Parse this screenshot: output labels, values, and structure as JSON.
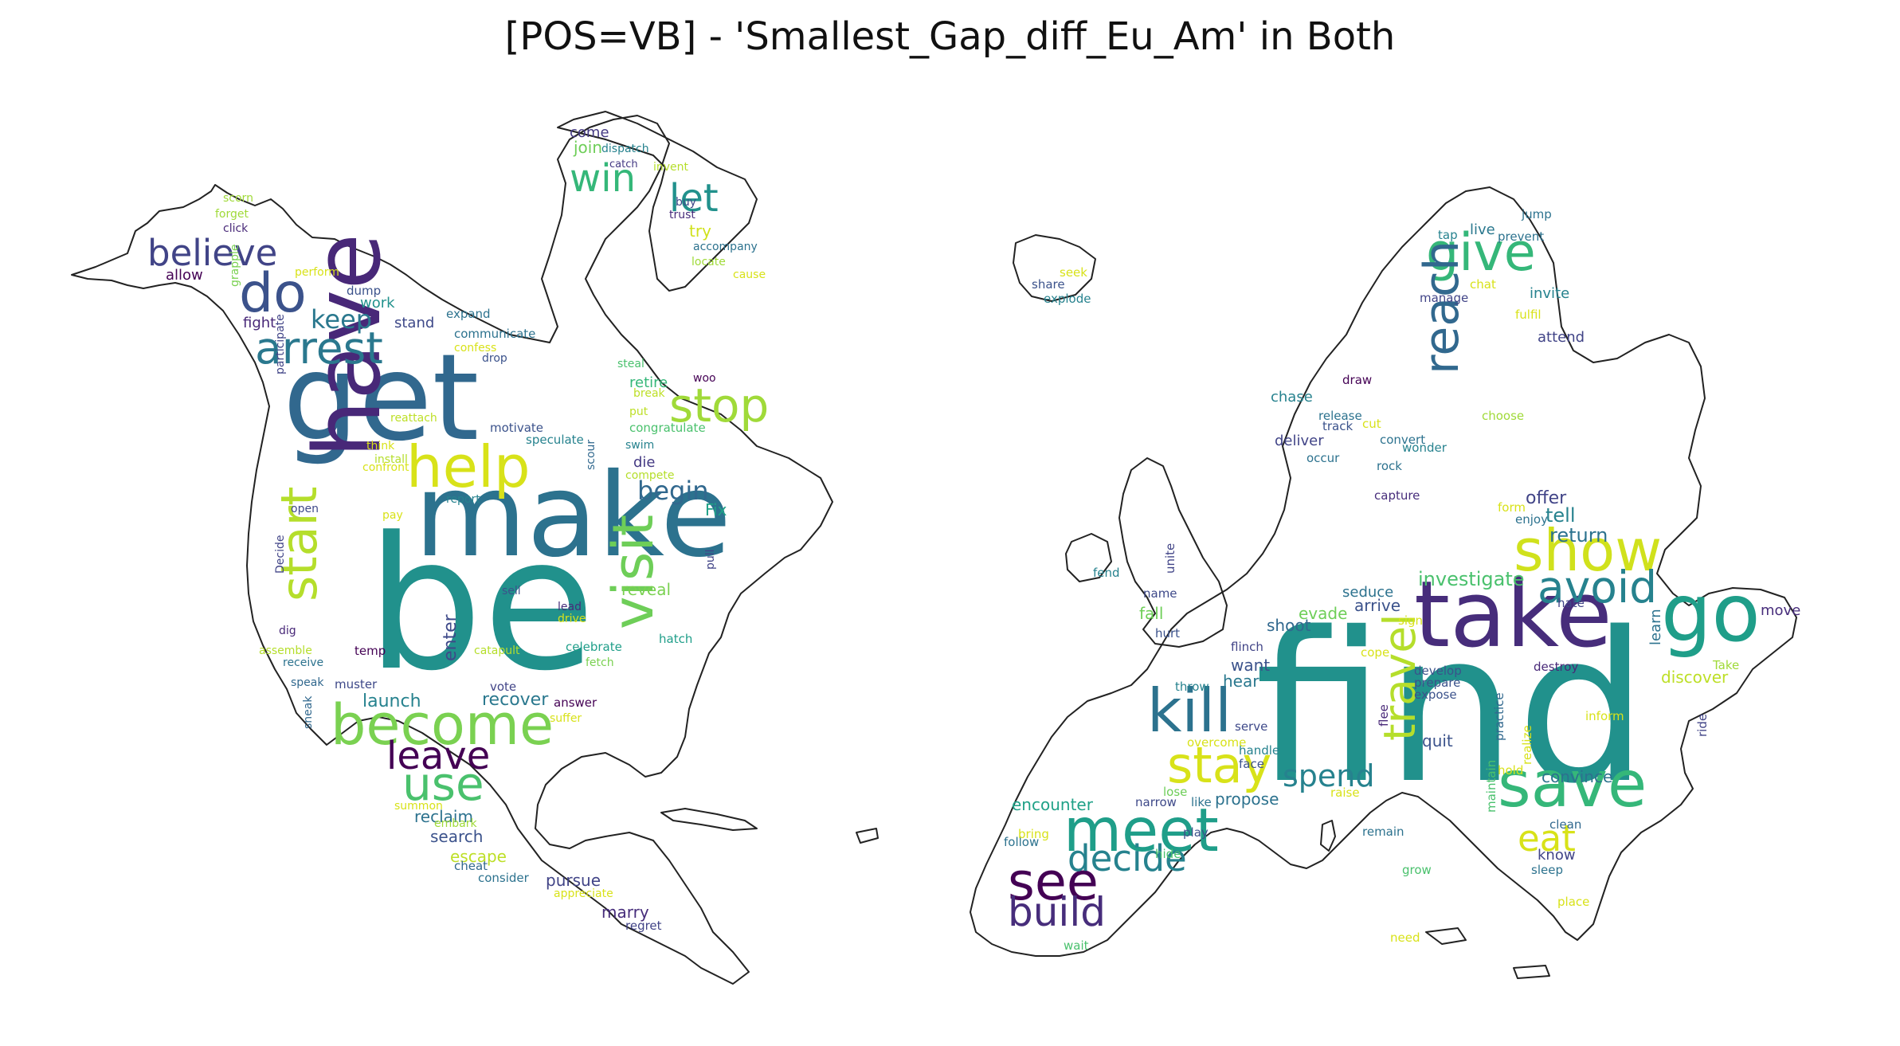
{
  "title": "[POS=VB] - 'Smallest_Gap_diff_Eu_Am' in Both",
  "maps": [
    {
      "region": "North America",
      "words": [
        [
          "be",
          1,
          "#21918c"
        ],
        [
          "make",
          0.63,
          "#2c728e"
        ],
        [
          "get",
          0.58,
          "#31688e"
        ],
        [
          "have",
          0.5,
          "#482878"
        ],
        [
          "help",
          0.34,
          "#d8e219"
        ],
        [
          "become",
          0.3,
          "#7ad151"
        ],
        [
          "do",
          0.3,
          "#3b528b"
        ],
        [
          "arrest",
          0.28,
          "#2a788e"
        ],
        [
          "visit",
          0.28,
          "#6ece58"
        ],
        [
          "start",
          0.26,
          "#b5de2b"
        ],
        [
          "stop",
          0.27,
          "#a0da39"
        ],
        [
          "use",
          0.27,
          "#4ac16d"
        ],
        [
          "leave",
          0.22,
          "#440154"
        ],
        [
          "believe",
          0.2,
          "#414487"
        ],
        [
          "win",
          0.2,
          "#35b779"
        ],
        [
          "let",
          0.2,
          "#21918c"
        ],
        [
          "keep",
          0.15,
          "#2a788e"
        ],
        [
          "begin",
          0.15,
          "#31688e"
        ],
        [
          "recover",
          0.1,
          "#2a788e"
        ],
        [
          "launch",
          0.1,
          "#26828e"
        ],
        [
          "enter",
          0.1,
          "#3e4989"
        ],
        [
          "pursue",
          0.1,
          "#414487"
        ],
        [
          "marry",
          0.1,
          "#472d7b"
        ],
        [
          "escape",
          0.1,
          "#bddf26"
        ],
        [
          "Fix",
          0.1,
          "#1fa187"
        ],
        [
          "reclaim",
          0.09,
          "#2c728e"
        ],
        [
          "search",
          0.09,
          "#3b528b"
        ],
        [
          "reveal",
          0.09,
          "#7ad151"
        ],
        [
          "try",
          0.09,
          "#d0e11c"
        ],
        [
          "join",
          0.09,
          "#6ece58"
        ],
        [
          "fight",
          0.08,
          "#482878"
        ],
        [
          "stand",
          0.08,
          "#3e4989"
        ],
        [
          "work",
          0.08,
          "#21918c"
        ],
        [
          "retire",
          0.08,
          "#35b779"
        ],
        [
          "allow",
          0.07,
          "#440154"
        ],
        [
          "die",
          0.07,
          "#443983"
        ],
        [
          "come",
          0.07,
          "#443983"
        ],
        [
          "communicate",
          0.06,
          "#2c728e"
        ],
        [
          "motivate",
          0.06,
          "#3b528b"
        ],
        [
          "speculate",
          0.06,
          "#26828e"
        ],
        [
          "congratulate",
          0.06,
          "#4ac16d"
        ],
        [
          "celebrate",
          0.06,
          "#1f9e89"
        ],
        [
          "hatch",
          0.06,
          "#1f9e89"
        ],
        [
          "dump",
          0.06,
          "#3b528b"
        ],
        [
          "expand",
          0.06,
          "#2c728e"
        ],
        [
          "temp",
          0.06,
          "#440154"
        ],
        [
          "muster",
          0.06,
          "#3e4989"
        ],
        [
          "vote",
          0.06,
          "#414487"
        ],
        [
          "answer",
          0.06,
          "#440154"
        ],
        [
          "cheat",
          0.06,
          "#31688e"
        ],
        [
          "consider",
          0.06,
          "#2c728e"
        ],
        [
          "regret",
          0.06,
          "#414487"
        ],
        [
          "appreciate",
          0.06,
          "#d8e219"
        ],
        [
          "dispatch",
          0.06,
          "#26828e"
        ],
        [
          "catch",
          0.06,
          "#443983"
        ],
        [
          "invent",
          0.06,
          "#b5de2b"
        ],
        [
          "buy",
          0.06,
          "#3e4989"
        ],
        [
          "trust",
          0.06,
          "#472d7b"
        ],
        [
          "accompany",
          0.06,
          "#2c728e"
        ],
        [
          "locate",
          0.06,
          "#a0da39"
        ],
        [
          "cause",
          0.06,
          "#d8e219"
        ],
        [
          "scorn",
          0.06,
          "#a0da39"
        ],
        [
          "forget",
          0.06,
          "#a0da39"
        ],
        [
          "click",
          0.06,
          "#482878"
        ],
        [
          "perform",
          0.06,
          "#d8e219"
        ],
        [
          "grapple",
          0.06,
          "#7ad151"
        ],
        [
          "confess",
          0.06,
          "#d8e219"
        ],
        [
          "drop",
          0.06,
          "#3b528b"
        ],
        [
          "steal",
          0.06,
          "#4ac16d"
        ],
        [
          "break",
          0.06,
          "#bddf26"
        ],
        [
          "woo",
          0.06,
          "#440154"
        ],
        [
          "put",
          0.06,
          "#bddf26"
        ],
        [
          "swim",
          0.06,
          "#26828e"
        ],
        [
          "compete",
          0.06,
          "#b5de2b"
        ],
        [
          "scour",
          0.06,
          "#31688e"
        ],
        [
          "participate",
          0.06,
          "#414487"
        ],
        [
          "reattach",
          0.06,
          "#bddf26"
        ],
        [
          "think",
          0.06,
          "#d8e219"
        ],
        [
          "install",
          0.06,
          "#b5de2b"
        ],
        [
          "confront",
          0.06,
          "#d8e219"
        ],
        [
          "report",
          0.06,
          "#26828e"
        ],
        [
          "open",
          0.06,
          "#3e4989"
        ],
        [
          "pay",
          0.06,
          "#d8e219"
        ],
        [
          "pull",
          0.06,
          "#414487"
        ],
        [
          "Decide",
          0.06,
          "#414487"
        ],
        [
          "sell",
          0.06,
          "#3b528b"
        ],
        [
          "lead",
          0.06,
          "#472d7b"
        ],
        [
          "drive",
          0.06,
          "#d8e219"
        ],
        [
          "dig",
          0.06,
          "#482878"
        ],
        [
          "receive",
          0.06,
          "#2c728e"
        ],
        [
          "assemble",
          0.06,
          "#b5de2b"
        ],
        [
          "speak",
          0.06,
          "#31688e"
        ],
        [
          "sneak",
          0.06,
          "#31688e"
        ],
        [
          "catapult",
          0.06,
          "#b5de2b"
        ],
        [
          "fetch",
          0.06,
          "#7ad151"
        ],
        [
          "suffer",
          0.06,
          "#d8e219"
        ],
        [
          "summon",
          0.06,
          "#d8e219"
        ],
        [
          "embark",
          0.06,
          "#a0da39"
        ]
      ]
    },
    {
      "region": "Europe",
      "words": [
        [
          "find",
          1,
          "#21918c"
        ],
        [
          "take",
          0.45,
          "#472d7b"
        ],
        [
          "go",
          0.42,
          "#1f9e89"
        ],
        [
          "show",
          0.3,
          "#d0e11c"
        ],
        [
          "save",
          0.33,
          "#35b779"
        ],
        [
          "meet",
          0.3,
          "#1f9e89"
        ],
        [
          "kill",
          0.3,
          "#2c728e"
        ],
        [
          "stay",
          0.27,
          "#d8e219"
        ],
        [
          "see",
          0.27,
          "#440154"
        ],
        [
          "travel",
          0.26,
          "#b5de2b"
        ],
        [
          "give",
          0.27,
          "#35b779"
        ],
        [
          "reach",
          0.27,
          "#31688e"
        ],
        [
          "avoid",
          0.25,
          "#26828e"
        ],
        [
          "decide",
          0.2,
          "#26828e"
        ],
        [
          "build",
          0.2,
          "#472d7b"
        ],
        [
          "eat",
          0.2,
          "#d8e219"
        ],
        [
          "spend",
          0.17,
          "#26828e"
        ],
        [
          "investigate",
          0.11,
          "#4ac16d"
        ],
        [
          "tell",
          0.1,
          "#26828e"
        ],
        [
          "return",
          0.1,
          "#2c728e"
        ],
        [
          "offer",
          0.09,
          "#414487"
        ],
        [
          "discover",
          0.09,
          "#bddf26"
        ],
        [
          "convince",
          0.09,
          "#2c728e"
        ],
        [
          "encounter",
          0.09,
          "#1fa187"
        ],
        [
          "propose",
          0.09,
          "#2c728e"
        ],
        [
          "arrive",
          0.09,
          "#3b528b"
        ],
        [
          "shoot",
          0.09,
          "#31688e"
        ],
        [
          "evade",
          0.09,
          "#6ece58"
        ],
        [
          "fall",
          0.09,
          "#6ece58"
        ],
        [
          "want",
          0.09,
          "#3b528b"
        ],
        [
          "hear",
          0.09,
          "#2a788e"
        ],
        [
          "quit",
          0.09,
          "#3b528b"
        ],
        [
          "seduce",
          0.08,
          "#2c728e"
        ],
        [
          "know",
          0.08,
          "#414487"
        ],
        [
          "chase",
          0.08,
          "#26828e"
        ],
        [
          "attend",
          0.08,
          "#414487"
        ],
        [
          "invite",
          0.08,
          "#26828e"
        ],
        [
          "live",
          0.08,
          "#2a788e"
        ],
        [
          "deliver",
          0.08,
          "#414487"
        ],
        [
          "move",
          0.07,
          "#472d7b"
        ],
        [
          "learn",
          0.07,
          "#2c728e"
        ],
        [
          "flinch",
          0.06,
          "#414487"
        ],
        [
          "throw",
          0.06,
          "#26828e"
        ],
        [
          "develop",
          0.06,
          "#3b528b"
        ],
        [
          "prepare",
          0.06,
          "#3b528b"
        ],
        [
          "expose",
          0.06,
          "#3b528b"
        ],
        [
          "destroy",
          0.06,
          "#482878"
        ],
        [
          "Take",
          0.06,
          "#a0da39"
        ],
        [
          "inform",
          0.06,
          "#d8e219"
        ],
        [
          "ride",
          0.06,
          "#414487"
        ],
        [
          "clean",
          0.06,
          "#31688e"
        ],
        [
          "sleep",
          0.06,
          "#2c728e"
        ],
        [
          "place",
          0.06,
          "#d8e219"
        ],
        [
          "grow",
          0.06,
          "#4ac16d"
        ],
        [
          "need",
          0.06,
          "#d8e219"
        ],
        [
          "remain",
          0.06,
          "#2c728e"
        ],
        [
          "raise",
          0.06,
          "#d8e219"
        ],
        [
          "handle",
          0.06,
          "#26828e"
        ],
        [
          "face",
          0.06,
          "#3b528b"
        ],
        [
          "serve",
          0.06,
          "#3e4989"
        ],
        [
          "flee",
          0.06,
          "#482878"
        ],
        [
          "overcome",
          0.06,
          "#d8e219"
        ],
        [
          "lose",
          0.06,
          "#6ece58"
        ],
        [
          "narrow",
          0.06,
          "#3e4989"
        ],
        [
          "like",
          0.06,
          "#2c728e"
        ],
        [
          "play",
          0.06,
          "#3b528b"
        ],
        [
          "hide",
          0.06,
          "#4ac16d"
        ],
        [
          "follow",
          0.06,
          "#2c728e"
        ],
        [
          "bring",
          0.06,
          "#d8e219"
        ],
        [
          "wait",
          0.06,
          "#4ac16d"
        ],
        [
          "hold",
          0.06,
          "#d8e219"
        ],
        [
          "maintain",
          0.06,
          "#4ac16d"
        ],
        [
          "practice",
          0.06,
          "#31688e"
        ],
        [
          "realize",
          0.06,
          "#d8e219"
        ],
        [
          "hate",
          0.06,
          "#414487"
        ],
        [
          "sign",
          0.06,
          "#d8e219"
        ],
        [
          "cope",
          0.06,
          "#d8e219"
        ],
        [
          "name",
          0.06,
          "#3e4989"
        ],
        [
          "hurt",
          0.06,
          "#3b528b"
        ],
        [
          "unite",
          0.06,
          "#414487"
        ],
        [
          "fend",
          0.06,
          "#26828e"
        ],
        [
          "capture",
          0.06,
          "#472d7b"
        ],
        [
          "form",
          0.06,
          "#d8e219"
        ],
        [
          "enjoy",
          0.06,
          "#2c728e"
        ],
        [
          "choose",
          0.06,
          "#a0da39"
        ],
        [
          "rock",
          0.06,
          "#2c728e"
        ],
        [
          "wonder",
          0.06,
          "#26828e"
        ],
        [
          "convert",
          0.06,
          "#2c728e"
        ],
        [
          "occur",
          0.06,
          "#2c728e"
        ],
        [
          "track",
          0.06,
          "#3b528b"
        ],
        [
          "cut",
          0.06,
          "#d8e219"
        ],
        [
          "release",
          0.06,
          "#2c728e"
        ],
        [
          "draw",
          0.06,
          "#440154"
        ],
        [
          "manage",
          0.06,
          "#414487"
        ],
        [
          "chat",
          0.06,
          "#d8e219"
        ],
        [
          "fulfil",
          0.06,
          "#d8e219"
        ],
        [
          "tap",
          0.06,
          "#26828e"
        ],
        [
          "prevent",
          0.06,
          "#2c728e"
        ],
        [
          "jump",
          0.06,
          "#2c728e"
        ],
        [
          "seek",
          0.06,
          "#d8e219"
        ],
        [
          "share",
          0.06,
          "#3b528b"
        ],
        [
          "explode",
          0.06,
          "#26828e"
        ]
      ]
    }
  ]
}
